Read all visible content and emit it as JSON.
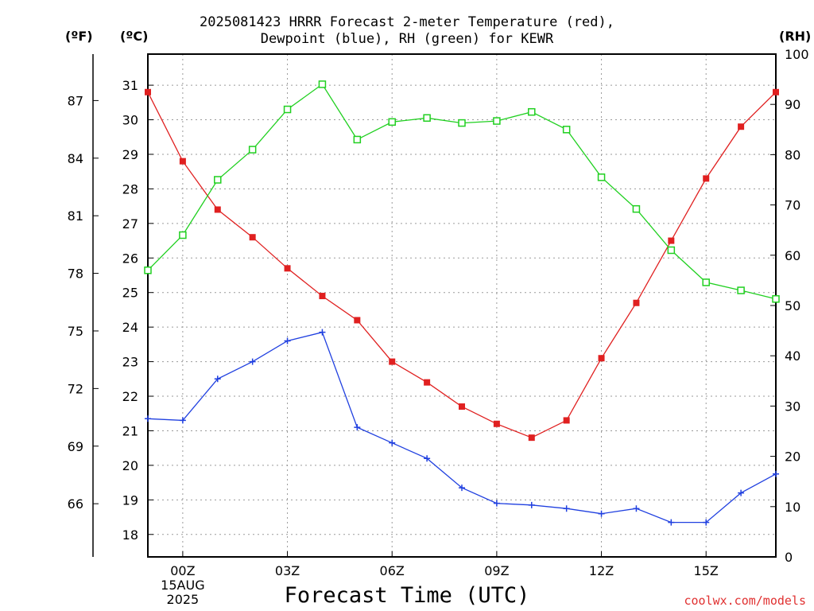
{
  "chart_data": {
    "type": "line",
    "title": "2025081423 HRRR Forecast 2-meter Temperature (red),",
    "subtitle": "Dewpoint (blue), RH (green) for KEWR",
    "xlabel": "Forecast Time (UTC)",
    "credit": "coolwx.com/models",
    "units": {
      "fahrenheit": "(ºF)",
      "celsius": "(ºC)",
      "rh": "(RH)"
    },
    "x_ticks": [
      "00Z",
      "03Z",
      "06Z",
      "09Z",
      "12Z",
      "15Z"
    ],
    "x_tick_sub": {
      "date": "15AUG",
      "year": "2025"
    },
    "x": [
      -1,
      0,
      1,
      2,
      3,
      4,
      5,
      6,
      7,
      8,
      9,
      10,
      11,
      12,
      13,
      14,
      15,
      16,
      17
    ],
    "xlim": [
      -1,
      17
    ],
    "ylim_celsius": [
      17.35,
      31.9
    ],
    "yticks_celsius": [
      18,
      19,
      20,
      21,
      22,
      23,
      24,
      25,
      26,
      27,
      28,
      29,
      30,
      31
    ],
    "yticks_fahrenheit": [
      66,
      69,
      72,
      75,
      78,
      81,
      84,
      87
    ],
    "ylim_rh": [
      0,
      100
    ],
    "yticks_rh": [
      0,
      10,
      20,
      30,
      40,
      50,
      60,
      70,
      80,
      90,
      100
    ],
    "grid": true,
    "series": [
      {
        "name": "Temperature",
        "color": "#e02020",
        "marker": "filled-square",
        "axis": "celsius",
        "values": [
          30.8,
          28.8,
          27.4,
          26.6,
          25.7,
          24.9,
          24.2,
          23.0,
          22.4,
          21.7,
          21.2,
          20.8,
          21.3,
          23.1,
          24.7,
          26.5,
          28.3,
          29.8,
          30.8
        ]
      },
      {
        "name": "Dewpoint",
        "color": "#2040e0",
        "marker": "plus",
        "axis": "celsius",
        "values": [
          21.35,
          21.3,
          22.5,
          23.0,
          23.6,
          23.85,
          21.1,
          20.65,
          20.2,
          19.35,
          18.9,
          18.85,
          18.75,
          18.6,
          18.75,
          18.35,
          18.35,
          19.2,
          19.75
        ]
      },
      {
        "name": "RH",
        "color": "#20d020",
        "marker": "open-square",
        "axis": "rh",
        "values": [
          57,
          64,
          75,
          81,
          89,
          94,
          83,
          86.5,
          87.3,
          86.3,
          86.7,
          88.5,
          85,
          75.5,
          69.2,
          61,
          54.6,
          53,
          51.3
        ]
      }
    ]
  }
}
